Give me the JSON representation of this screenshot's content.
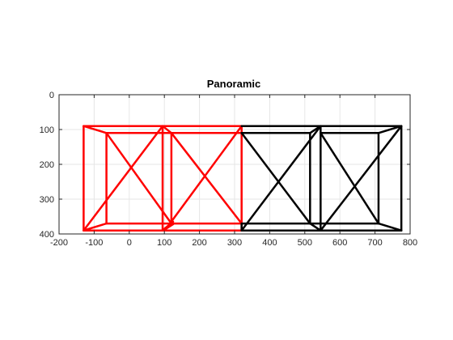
{
  "chart_data": {
    "type": "line",
    "title": "Panoramic",
    "xlabel": "",
    "ylabel": "",
    "xlim": [
      -200,
      800
    ],
    "ylim": [
      0,
      400
    ],
    "y_reversed": true,
    "grid": true,
    "x_ticks": [
      -200,
      -100,
      0,
      100,
      200,
      300,
      400,
      500,
      600,
      700,
      800
    ],
    "y_ticks": [
      0,
      100,
      200,
      300,
      400
    ],
    "series": [
      {
        "color": "#ff0000",
        "segments": [
          [
            [
              -130,
              90
            ],
            [
              95,
              90
            ]
          ],
          [
            [
              95,
              90
            ],
            [
              95,
              390
            ]
          ],
          [
            [
              95,
              390
            ],
            [
              -130,
              390
            ]
          ],
          [
            [
              -130,
              390
            ],
            [
              -130,
              90
            ]
          ],
          [
            [
              -65,
              110
            ],
            [
              120,
              110
            ]
          ],
          [
            [
              120,
              110
            ],
            [
              120,
              370
            ]
          ],
          [
            [
              120,
              370
            ],
            [
              -65,
              370
            ]
          ],
          [
            [
              -65,
              370
            ],
            [
              -65,
              110
            ]
          ],
          [
            [
              -130,
              90
            ],
            [
              -65,
              110
            ]
          ],
          [
            [
              95,
              90
            ],
            [
              120,
              110
            ]
          ],
          [
            [
              95,
              390
            ],
            [
              120,
              370
            ]
          ],
          [
            [
              -130,
              390
            ],
            [
              -65,
              370
            ]
          ],
          [
            [
              -130,
              390
            ],
            [
              95,
              90
            ]
          ],
          [
            [
              -65,
              110
            ],
            [
              120,
              370
            ]
          ],
          [
            [
              95,
              90
            ],
            [
              320,
              90
            ]
          ],
          [
            [
              320,
              90
            ],
            [
              320,
              390
            ]
          ],
          [
            [
              320,
              390
            ],
            [
              95,
              390
            ]
          ],
          [
            [
              120,
              110
            ],
            [
              320,
              110
            ]
          ],
          [
            [
              120,
              370
            ],
            [
              320,
              370
            ]
          ],
          [
            [
              105,
              385
            ],
            [
              320,
              90
            ]
          ],
          [
            [
              120,
              110
            ],
            [
              320,
              370
            ]
          ],
          [
            [
              100,
              385
            ],
            [
              125,
              365
            ]
          ],
          [
            [
              100,
              388
            ],
            [
              125,
              372
            ]
          ]
        ]
      },
      {
        "color": "#000000",
        "segments": [
          [
            [
              320,
              90
            ],
            [
              775,
              90
            ]
          ],
          [
            [
              320,
              390
            ],
            [
              775,
              390
            ]
          ],
          [
            [
              320,
              110
            ],
            [
              515,
              110
            ]
          ],
          [
            [
              320,
              370
            ],
            [
              710,
              370
            ]
          ],
          [
            [
              545,
              110
            ],
            [
              710,
              110
            ]
          ],
          [
            [
              545,
              90
            ],
            [
              545,
              390
            ]
          ],
          [
            [
              515,
              110
            ],
            [
              515,
              370
            ]
          ],
          [
            [
              710,
              110
            ],
            [
              710,
              370
            ]
          ],
          [
            [
              775,
              90
            ],
            [
              775,
              390
            ]
          ],
          [
            [
              320,
              390
            ],
            [
              545,
              90
            ]
          ],
          [
            [
              320,
              110
            ],
            [
              515,
              370
            ]
          ],
          [
            [
              545,
              390
            ],
            [
              775,
              90
            ]
          ],
          [
            [
              545,
              110
            ],
            [
              710,
              370
            ]
          ],
          [
            [
              515,
              110
            ],
            [
              545,
              90
            ]
          ],
          [
            [
              515,
              370
            ],
            [
              545,
              390
            ]
          ],
          [
            [
              710,
              110
            ],
            [
              775,
              90
            ]
          ],
          [
            [
              710,
              370
            ],
            [
              775,
              390
            ]
          ],
          [
            [
              320,
              370
            ],
            [
              320,
              390
            ]
          ]
        ]
      }
    ]
  }
}
